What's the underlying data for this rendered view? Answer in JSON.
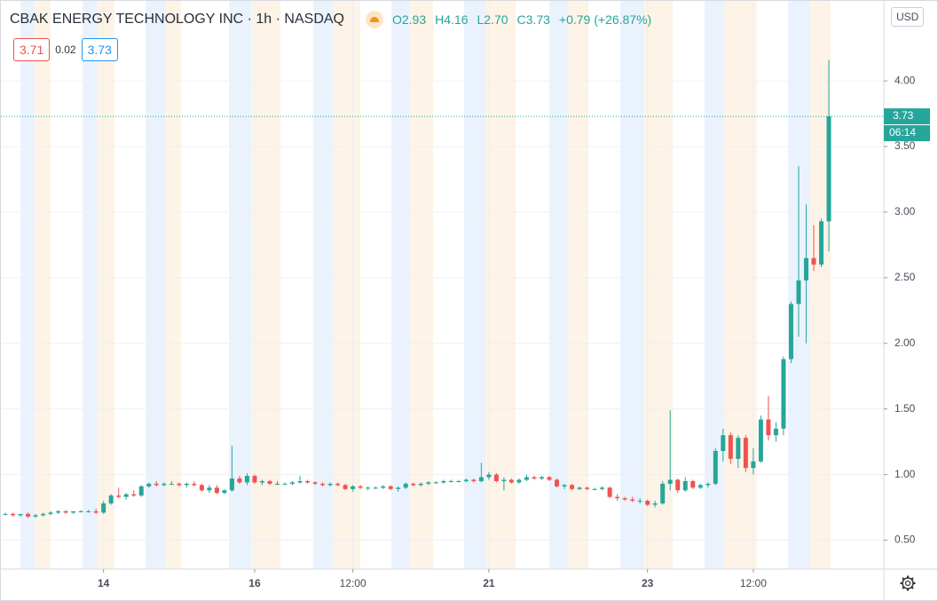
{
  "header": {
    "title": "CBAK ENERGY TECHNOLOGY INC · 1h · NASDAQ",
    "open": "O2.93",
    "high": "H4.16",
    "low": "L2.70",
    "close": "C3.73",
    "change": "+0.79 (+26.87%)"
  },
  "quote": {
    "bid": "3.71",
    "spread": "0.02",
    "ask": "3.73"
  },
  "currency": "USD",
  "chart_data": {
    "type": "candlestick",
    "up_color": "#26a69a",
    "down_color": "#ef5350",
    "grid": true,
    "countdown": "06:14",
    "ylim": [
      0.28,
      4.61
    ],
    "yticks": [
      {
        "value": 0.5,
        "label": "0.50"
      },
      {
        "value": 1,
        "label": "1.00"
      },
      {
        "value": 1.5,
        "label": "1.50"
      },
      {
        "value": 2,
        "label": "2.00"
      },
      {
        "value": 2.5,
        "label": "2.50"
      },
      {
        "value": 3,
        "label": "3.00"
      },
      {
        "value": 3.5,
        "label": "3.50"
      },
      {
        "value": 4,
        "label": "4.00"
      }
    ],
    "xticks": [
      {
        "value": 13,
        "label": "14"
      },
      {
        "value": 33,
        "label": "16"
      },
      {
        "value": 46,
        "label": "12:00"
      },
      {
        "value": 64,
        "label": "21"
      },
      {
        "value": 85,
        "label": "23"
      },
      {
        "value": 99,
        "label": "12:00"
      }
    ],
    "ohlc": [
      [
        0.7,
        0.71,
        0.69,
        0.7
      ],
      [
        0.7,
        0.71,
        0.68,
        0.69
      ],
      [
        0.69,
        0.7,
        0.68,
        0.7
      ],
      [
        0.7,
        0.71,
        0.67,
        0.68
      ],
      [
        0.68,
        0.7,
        0.67,
        0.69
      ],
      [
        0.69,
        0.71,
        0.68,
        0.7
      ],
      [
        0.7,
        0.72,
        0.69,
        0.71
      ],
      [
        0.71,
        0.73,
        0.7,
        0.72
      ],
      [
        0.72,
        0.73,
        0.7,
        0.71
      ],
      [
        0.71,
        0.72,
        0.7,
        0.72
      ],
      [
        0.72,
        0.73,
        0.71,
        0.72
      ],
      [
        0.72,
        0.73,
        0.71,
        0.72
      ],
      [
        0.72,
        0.74,
        0.7,
        0.71
      ],
      [
        0.71,
        0.8,
        0.7,
        0.78
      ],
      [
        0.78,
        0.85,
        0.77,
        0.84
      ],
      [
        0.84,
        0.9,
        0.82,
        0.83
      ],
      [
        0.83,
        0.86,
        0.81,
        0.85
      ],
      [
        0.85,
        0.88,
        0.83,
        0.84
      ],
      [
        0.84,
        0.92,
        0.83,
        0.91
      ],
      [
        0.91,
        0.94,
        0.9,
        0.93
      ],
      [
        0.93,
        0.95,
        0.91,
        0.92
      ],
      [
        0.92,
        0.94,
        0.91,
        0.93
      ],
      [
        0.93,
        0.95,
        0.92,
        0.93
      ],
      [
        0.93,
        0.94,
        0.91,
        0.92
      ],
      [
        0.92,
        0.94,
        0.9,
        0.93
      ],
      [
        0.93,
        0.95,
        0.91,
        0.92
      ],
      [
        0.92,
        0.93,
        0.87,
        0.88
      ],
      [
        0.88,
        0.92,
        0.86,
        0.9
      ],
      [
        0.9,
        0.92,
        0.85,
        0.86
      ],
      [
        0.86,
        0.89,
        0.85,
        0.88
      ],
      [
        0.88,
        1.22,
        0.87,
        0.97
      ],
      [
        0.97,
        0.99,
        0.93,
        0.94
      ],
      [
        0.94,
        1.01,
        0.92,
        0.99
      ],
      [
        0.99,
        1.0,
        0.93,
        0.94
      ],
      [
        0.94,
        0.96,
        0.92,
        0.95
      ],
      [
        0.95,
        0.96,
        0.92,
        0.93
      ],
      [
        0.93,
        0.95,
        0.92,
        0.93
      ],
      [
        0.93,
        0.94,
        0.92,
        0.93
      ],
      [
        0.93,
        0.95,
        0.92,
        0.94
      ],
      [
        0.94,
        0.99,
        0.93,
        0.95
      ],
      [
        0.95,
        0.96,
        0.93,
        0.94
      ],
      [
        0.94,
        0.95,
        0.92,
        0.93
      ],
      [
        0.93,
        0.94,
        0.91,
        0.92
      ],
      [
        0.92,
        0.94,
        0.91,
        0.93
      ],
      [
        0.93,
        0.94,
        0.91,
        0.92
      ],
      [
        0.92,
        0.93,
        0.88,
        0.89
      ],
      [
        0.89,
        0.92,
        0.87,
        0.91
      ],
      [
        0.91,
        0.92,
        0.89,
        0.9
      ],
      [
        0.9,
        0.91,
        0.88,
        0.9
      ],
      [
        0.9,
        0.91,
        0.89,
        0.9
      ],
      [
        0.9,
        0.92,
        0.89,
        0.91
      ],
      [
        0.91,
        0.92,
        0.88,
        0.89
      ],
      [
        0.89,
        0.91,
        0.87,
        0.9
      ],
      [
        0.9,
        0.94,
        0.89,
        0.93
      ],
      [
        0.93,
        0.94,
        0.91,
        0.92
      ],
      [
        0.92,
        0.94,
        0.91,
        0.93
      ],
      [
        0.93,
        0.95,
        0.92,
        0.94
      ],
      [
        0.94,
        0.95,
        0.93,
        0.94
      ],
      [
        0.94,
        0.96,
        0.93,
        0.95
      ],
      [
        0.95,
        0.96,
        0.94,
        0.95
      ],
      [
        0.95,
        0.96,
        0.94,
        0.95
      ],
      [
        0.95,
        0.97,
        0.94,
        0.96
      ],
      [
        0.96,
        0.97,
        0.94,
        0.95
      ],
      [
        0.95,
        1.09,
        0.94,
        0.98
      ],
      [
        0.98,
        1.02,
        0.96,
        1.0
      ],
      [
        1.0,
        1.01,
        0.94,
        0.95
      ],
      [
        0.95,
        0.98,
        0.88,
        0.96
      ],
      [
        0.96,
        0.97,
        0.93,
        0.94
      ],
      [
        0.94,
        0.97,
        0.93,
        0.96
      ],
      [
        0.96,
        1.0,
        0.95,
        0.98
      ],
      [
        0.98,
        0.99,
        0.96,
        0.97
      ],
      [
        0.97,
        0.99,
        0.96,
        0.98
      ],
      [
        0.98,
        0.99,
        0.95,
        0.96
      ],
      [
        0.96,
        0.97,
        0.9,
        0.91
      ],
      [
        0.91,
        0.93,
        0.89,
        0.92
      ],
      [
        0.92,
        0.93,
        0.88,
        0.89
      ],
      [
        0.89,
        0.91,
        0.88,
        0.9
      ],
      [
        0.9,
        0.91,
        0.88,
        0.89
      ],
      [
        0.89,
        0.9,
        0.88,
        0.89
      ],
      [
        0.89,
        0.91,
        0.88,
        0.9
      ],
      [
        0.9,
        0.91,
        0.82,
        0.83
      ],
      [
        0.83,
        0.85,
        0.8,
        0.82
      ],
      [
        0.82,
        0.83,
        0.8,
        0.81
      ],
      [
        0.81,
        0.83,
        0.79,
        0.8
      ],
      [
        0.8,
        0.82,
        0.78,
        0.8
      ],
      [
        0.8,
        0.81,
        0.76,
        0.77
      ],
      [
        0.77,
        0.8,
        0.75,
        0.78
      ],
      [
        0.78,
        0.95,
        0.77,
        0.93
      ],
      [
        0.93,
        1.49,
        0.88,
        0.96
      ],
      [
        0.96,
        0.97,
        0.86,
        0.88
      ],
      [
        0.88,
        0.98,
        0.87,
        0.95
      ],
      [
        0.95,
        0.96,
        0.89,
        0.9
      ],
      [
        0.9,
        0.93,
        0.89,
        0.92
      ],
      [
        0.92,
        0.94,
        0.9,
        0.93
      ],
      [
        0.93,
        1.2,
        0.92,
        1.18
      ],
      [
        1.18,
        1.35,
        1.1,
        1.3
      ],
      [
        1.3,
        1.32,
        1.08,
        1.12
      ],
      [
        1.12,
        1.3,
        1.05,
        1.28
      ],
      [
        1.28,
        1.3,
        1.02,
        1.05
      ],
      [
        1.05,
        1.2,
        1.0,
        1.1
      ],
      [
        1.1,
        1.45,
        1.09,
        1.42
      ],
      [
        1.42,
        1.6,
        1.26,
        1.3
      ],
      [
        1.3,
        1.4,
        1.25,
        1.35
      ],
      [
        1.35,
        1.9,
        1.3,
        1.88
      ],
      [
        1.88,
        2.32,
        1.85,
        2.3
      ],
      [
        2.3,
        3.35,
        2.05,
        2.48
      ],
      [
        2.48,
        3.06,
        2.0,
        2.65
      ],
      [
        2.65,
        2.9,
        2.55,
        2.6
      ],
      [
        2.6,
        2.95,
        2.58,
        2.93
      ],
      [
        2.93,
        4.16,
        2.7,
        3.73
      ]
    ]
  }
}
